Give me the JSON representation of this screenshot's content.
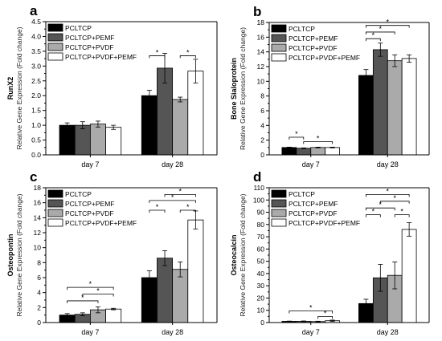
{
  "legend": [
    "PCLTCP",
    "PCLTCP+PEMF",
    "PCLTCP+PVDF",
    "PCLTCP+PVDF+PEMF"
  ],
  "colors": [
    "#000000",
    "#555555",
    "#aaaaaa",
    "#ffffff"
  ],
  "chart_data": [
    {
      "type": "bar",
      "panel_label": "a",
      "categories": [
        "day 7",
        "day 28"
      ],
      "ylabel_gene": "RunX2",
      "ylabel": "Relative Gene Expression (Fold change)",
      "ylim": [
        0,
        4.5
      ],
      "yticks": [
        "0.0",
        "0.5",
        "1.0",
        "1.5",
        "2.0",
        "2.5",
        "3.0",
        "3.5",
        "4.0",
        "4.5"
      ],
      "series": [
        {
          "name": "PCLTCP",
          "values": [
            1.0,
            2.0
          ],
          "errors": [
            0.08,
            0.18
          ]
        },
        {
          "name": "PCLTCP+PEMF",
          "values": [
            1.0,
            2.93
          ],
          "errors": [
            0.12,
            0.5
          ]
        },
        {
          "name": "PCLTCP+PVDF",
          "values": [
            1.04,
            1.87
          ],
          "errors": [
            0.1,
            0.08
          ]
        },
        {
          "name": "PCLTCP+PVDF+PEMF",
          "values": [
            0.93,
            2.83
          ],
          "errors": [
            0.07,
            0.4
          ]
        }
      ],
      "significance": [
        {
          "group": 1,
          "from": 0,
          "to": 1,
          "level": 3.35,
          "label": "*"
        },
        {
          "group": 1,
          "from": 2,
          "to": 3,
          "level": 3.35,
          "label": "*"
        }
      ]
    },
    {
      "type": "bar",
      "panel_label": "b",
      "categories": [
        "day 7",
        "day 28"
      ],
      "ylabel_gene": "Bone Sialoprotein",
      "ylabel": "Relative Gene Expression (Fold change)",
      "ylim": [
        0,
        18
      ],
      "yticks": [
        "0",
        "2",
        "4",
        "6",
        "8",
        "10",
        "12",
        "14",
        "16",
        "18"
      ],
      "series": [
        {
          "name": "PCLTCP",
          "values": [
            1.0,
            10.8
          ],
          "errors": [
            0.05,
            0.8
          ]
        },
        {
          "name": "PCLTCP+PEMF",
          "values": [
            0.9,
            14.3
          ],
          "errors": [
            0.05,
            0.9
          ]
        },
        {
          "name": "PCLTCP+PVDF",
          "values": [
            1.0,
            12.8
          ],
          "errors": [
            0.05,
            0.8
          ]
        },
        {
          "name": "PCLTCP+PVDF+PEMF",
          "values": [
            1.0,
            13.1
          ],
          "errors": [
            0.05,
            0.5
          ]
        }
      ],
      "significance": [
        {
          "group": 0,
          "from": 0,
          "to": 1,
          "level": 2.4,
          "label": "*"
        },
        {
          "group": 0,
          "from": 1,
          "to": 3,
          "level": 1.8,
          "label": "*"
        },
        {
          "group": 1,
          "from": 0,
          "to": 1,
          "level": 15.8,
          "label": "*"
        },
        {
          "group": 1,
          "from": 0,
          "to": 2,
          "level": 16.7,
          "label": "*"
        },
        {
          "group": 1,
          "from": 0,
          "to": 3,
          "level": 17.6,
          "label": "*"
        }
      ]
    },
    {
      "type": "bar",
      "panel_label": "c",
      "categories": [
        "day 7",
        "day 28"
      ],
      "ylabel_gene": "Osteopontin",
      "ylabel": "Relative Gene Expression (Fold change)",
      "ylim": [
        0,
        18
      ],
      "yticks": [
        "0",
        "2",
        "4",
        "6",
        "8",
        "10",
        "12",
        "14",
        "16",
        "18"
      ],
      "series": [
        {
          "name": "PCLTCP",
          "values": [
            1.0,
            6.0
          ],
          "errors": [
            0.2,
            0.9
          ]
        },
        {
          "name": "PCLTCP+PEMF",
          "values": [
            1.1,
            8.6
          ],
          "errors": [
            0.2,
            1.0
          ]
        },
        {
          "name": "PCLTCP+PVDF",
          "values": [
            1.7,
            7.1
          ],
          "errors": [
            0.4,
            1.0
          ]
        },
        {
          "name": "PCLTCP+PVDF+PEMF",
          "values": [
            1.8,
            13.7
          ],
          "errors": [
            0.1,
            1.2
          ]
        }
      ],
      "significance": [
        {
          "group": 0,
          "from": 0,
          "to": 2,
          "level": 2.9,
          "label": "*"
        },
        {
          "group": 0,
          "from": 1,
          "to": 3,
          "level": 3.8,
          "label": "*"
        },
        {
          "group": 0,
          "from": 0,
          "to": 3,
          "level": 4.7,
          "label": "*"
        },
        {
          "group": 1,
          "from": 0,
          "to": 1,
          "level": 15.0,
          "label": "*"
        },
        {
          "group": 1,
          "from": 2,
          "to": 3,
          "level": 15.0,
          "label": "*"
        },
        {
          "group": 1,
          "from": 0,
          "to": 3,
          "level": 16.3,
          "label": "*"
        },
        {
          "group": 1,
          "from": 1,
          "to": 3,
          "level": 17.1,
          "label": "*"
        }
      ]
    },
    {
      "type": "bar",
      "panel_label": "d",
      "categories": [
        "day 7",
        "day 28"
      ],
      "ylabel_gene": "Osteocalcin",
      "ylabel": "Relative Gene Expression (Fold change)",
      "ylim": [
        0,
        110
      ],
      "yticks": [
        "0",
        "10",
        "20",
        "30",
        "40",
        "50",
        "60",
        "70",
        "80",
        "90",
        "100",
        "110"
      ],
      "series": [
        {
          "name": "PCLTCP",
          "values": [
            1.0,
            15.5
          ],
          "errors": [
            0.2,
            3.5
          ]
        },
        {
          "name": "PCLTCP+PEMF",
          "values": [
            1.0,
            36.5
          ],
          "errors": [
            0.3,
            11.0
          ]
        },
        {
          "name": "PCLTCP+PVDF",
          "values": [
            0.8,
            38.5
          ],
          "errors": [
            0.3,
            11.0
          ]
        },
        {
          "name": "PCLTCP+PVDF+PEMF",
          "values": [
            1.5,
            76.0
          ],
          "errors": [
            0.5,
            5.5
          ]
        }
      ],
      "significance": [
        {
          "group": 0,
          "from": 2,
          "to": 3,
          "level": 5.0,
          "label": "*"
        },
        {
          "group": 0,
          "from": 0,
          "to": 3,
          "level": 9.5,
          "label": "*"
        },
        {
          "group": 1,
          "from": 0,
          "to": 1,
          "level": 88.0,
          "label": "*"
        },
        {
          "group": 1,
          "from": 2,
          "to": 3,
          "level": 88.0,
          "label": "*"
        },
        {
          "group": 1,
          "from": 0,
          "to": 2,
          "level": 93.5,
          "label": "*"
        },
        {
          "group": 1,
          "from": 1,
          "to": 3,
          "level": 99.0,
          "label": "*"
        },
        {
          "group": 1,
          "from": 0,
          "to": 3,
          "level": 104.5,
          "label": "*"
        }
      ]
    }
  ]
}
